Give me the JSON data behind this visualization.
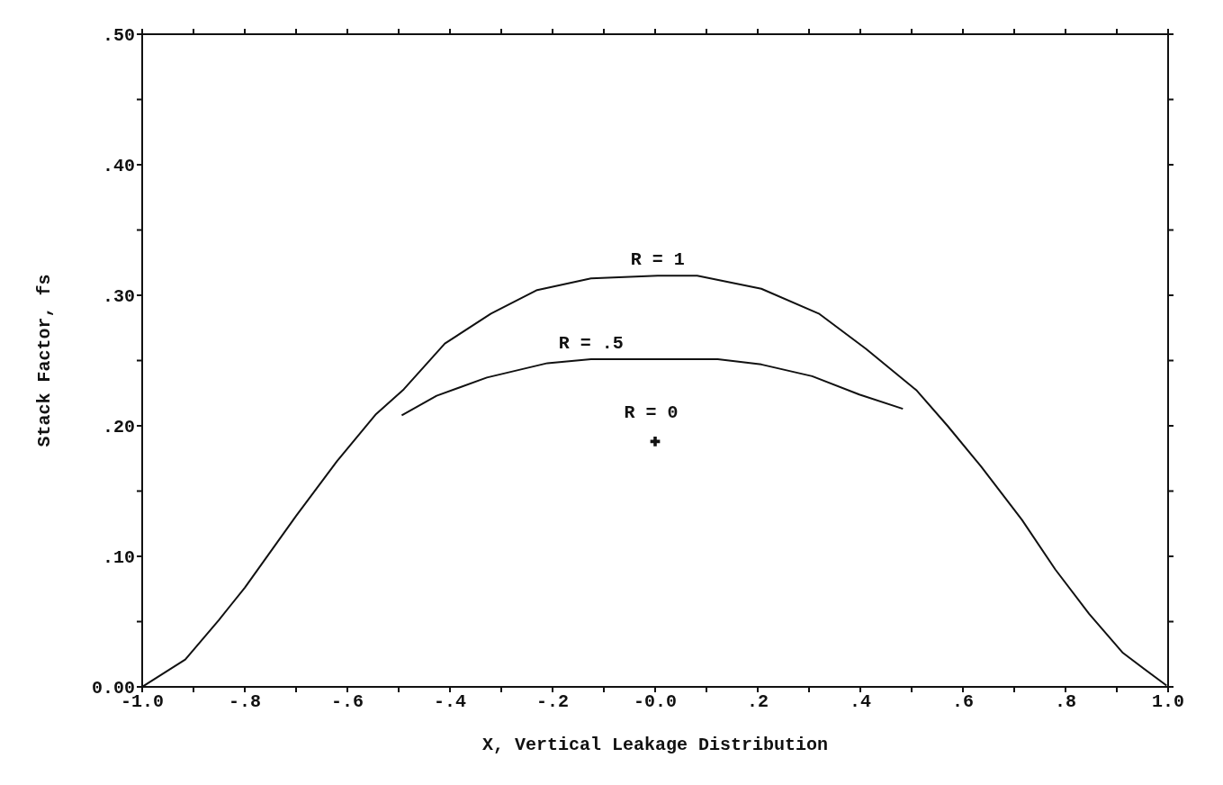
{
  "chart_data": {
    "type": "line",
    "xlabel": "X, Vertical Leakage Distribution",
    "ylabel": "Stack Factor, fs",
    "xlim": [
      -1.0,
      1.0
    ],
    "ylim": [
      0.0,
      0.5
    ],
    "xticks": [
      {
        "value": -1.0,
        "label": "-1.0"
      },
      {
        "value": -0.9,
        "label": null
      },
      {
        "value": -0.8,
        "label": "-.8"
      },
      {
        "value": -0.7,
        "label": null
      },
      {
        "value": -0.6,
        "label": "-.6"
      },
      {
        "value": -0.5,
        "label": null
      },
      {
        "value": -0.4,
        "label": "-.4"
      },
      {
        "value": -0.3,
        "label": null
      },
      {
        "value": -0.2,
        "label": "-.2"
      },
      {
        "value": -0.1,
        "label": null
      },
      {
        "value": 0.0,
        "label": "-0.0"
      },
      {
        "value": 0.1,
        "label": null
      },
      {
        "value": 0.2,
        "label": ".2"
      },
      {
        "value": 0.3,
        "label": null
      },
      {
        "value": 0.4,
        "label": ".4"
      },
      {
        "value": 0.5,
        "label": null
      },
      {
        "value": 0.6,
        "label": ".6"
      },
      {
        "value": 0.7,
        "label": null
      },
      {
        "value": 0.8,
        "label": ".8"
      },
      {
        "value": 0.9,
        "label": null
      },
      {
        "value": 1.0,
        "label": "1.0"
      }
    ],
    "yticks": [
      {
        "value": 0.0,
        "label": "0.00"
      },
      {
        "value": 0.05,
        "label": null
      },
      {
        "value": 0.1,
        "label": ".10"
      },
      {
        "value": 0.15,
        "label": null
      },
      {
        "value": 0.2,
        "label": ".20"
      },
      {
        "value": 0.25,
        "label": null
      },
      {
        "value": 0.3,
        "label": ".30"
      },
      {
        "value": 0.35,
        "label": null
      },
      {
        "value": 0.4,
        "label": ".40"
      },
      {
        "value": 0.45,
        "label": null
      },
      {
        "value": 0.5,
        "label": ".50"
      }
    ],
    "line_style": "solid",
    "series": [
      {
        "name": "R = 1",
        "color": "#111111",
        "x": [
          -1.0,
          -0.916,
          -0.851,
          -0.8,
          -0.7,
          -0.62,
          -0.544,
          -0.49,
          -0.41,
          -0.32,
          -0.23,
          -0.125,
          0.005,
          0.082,
          0.207,
          0.319,
          0.411,
          0.51,
          0.57,
          0.635,
          0.715,
          0.78,
          0.846,
          0.912,
          0.997
        ],
        "values": [
          0.0,
          0.021,
          0.051,
          0.076,
          0.131,
          0.173,
          0.209,
          0.228,
          0.263,
          0.286,
          0.304,
          0.313,
          0.315,
          0.315,
          0.305,
          0.286,
          0.259,
          0.227,
          0.2,
          0.169,
          0.128,
          0.09,
          0.056,
          0.026,
          0.001
        ]
      },
      {
        "name": "R = .5",
        "color": "#111111",
        "x": [
          -0.494,
          -0.426,
          -0.328,
          -0.21,
          -0.125,
          0.005,
          0.122,
          0.207,
          0.306,
          0.398,
          0.483
        ],
        "values": [
          0.208,
          0.223,
          0.237,
          0.248,
          0.251,
          0.251,
          0.251,
          0.247,
          0.238,
          0.224,
          0.213
        ]
      },
      {
        "name": "R = 0",
        "type": "scatter",
        "marker": "cross",
        "color": "#111111",
        "x": [
          0.0
        ],
        "values": [
          0.188
        ]
      }
    ]
  }
}
